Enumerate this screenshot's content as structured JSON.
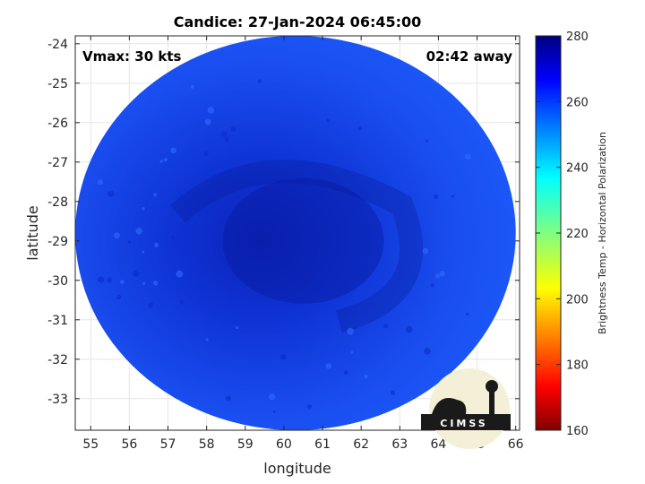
{
  "chart_data": {
    "type": "heatmap",
    "title": "Candice: 27-Jan-2024 06:45:00",
    "xlabel": "longitude",
    "ylabel": "latitude",
    "xlim": [
      54.6,
      66.1
    ],
    "ylim": [
      -33.8,
      -23.8
    ],
    "xticks": [
      55,
      56,
      57,
      58,
      59,
      60,
      61,
      62,
      63,
      64,
      65,
      66
    ],
    "yticks": [
      -24,
      -25,
      -26,
      -27,
      -28,
      -29,
      -30,
      -31,
      -32,
      -33
    ],
    "annotations": {
      "vmax": "Vmax: 30 kts",
      "away": "02:42 away"
    },
    "swath": {
      "center_lon": 60.3,
      "center_lat": -28.8,
      "radius_lon": 5.7,
      "radius_lat": 5.0
    },
    "cyclone_center": {
      "lon": 60.5,
      "lat": -29.0
    },
    "colorbar": {
      "label": "Brightness Temp - Horizontal Polarization",
      "min": 160,
      "max": 280,
      "ticks": [
        280,
        260,
        240,
        220,
        200,
        180,
        160
      ],
      "colormap": "jet"
    },
    "grid": true,
    "logo": "CIMSS"
  },
  "colors": {
    "swath_fill": "#1646f0",
    "swath_dark": "#0a1ea8",
    "background": "#ffffff",
    "axis": "#262626"
  }
}
